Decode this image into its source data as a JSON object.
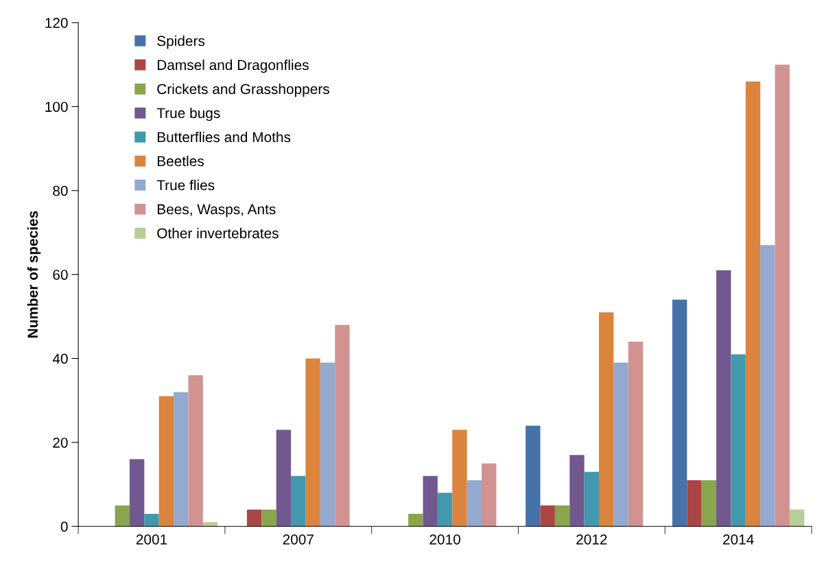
{
  "chart_data": {
    "type": "bar",
    "ylabel": "Number of species",
    "categories": [
      "2001",
      "2007",
      "2010",
      "2012",
      "2014"
    ],
    "series": [
      {
        "name": "Spiders",
        "color": "#4572a7",
        "values": [
          0,
          0,
          0,
          24,
          54
        ]
      },
      {
        "name": "Damsel and Dragonflies",
        "color": "#aa4643",
        "values": [
          0,
          4,
          0,
          5,
          11
        ]
      },
      {
        "name": "Crickets and Grasshoppers",
        "color": "#89a54e",
        "values": [
          5,
          4,
          3,
          5,
          11
        ]
      },
      {
        "name": "True bugs",
        "color": "#71588f",
        "values": [
          16,
          23,
          12,
          17,
          61
        ]
      },
      {
        "name": "Butterflies and Moths",
        "color": "#4198af",
        "values": [
          3,
          12,
          8,
          13,
          41
        ]
      },
      {
        "name": "Beetles",
        "color": "#db843d",
        "values": [
          31,
          40,
          23,
          51,
          106
        ]
      },
      {
        "name": "True flies",
        "color": "#93a9cf",
        "values": [
          32,
          39,
          11,
          39,
          67
        ]
      },
      {
        "name": "Bees, Wasps, Ants",
        "color": "#d19392",
        "values": [
          36,
          48,
          15,
          44,
          110
        ]
      },
      {
        "name": "Other invertebrates",
        "color": "#b9cd96",
        "values": [
          1,
          0,
          0,
          0,
          4
        ]
      }
    ],
    "ylim": [
      0,
      120
    ],
    "yticks": [
      0,
      20,
      40,
      60,
      80,
      100,
      120
    ],
    "grid": false,
    "legend": "top left"
  }
}
